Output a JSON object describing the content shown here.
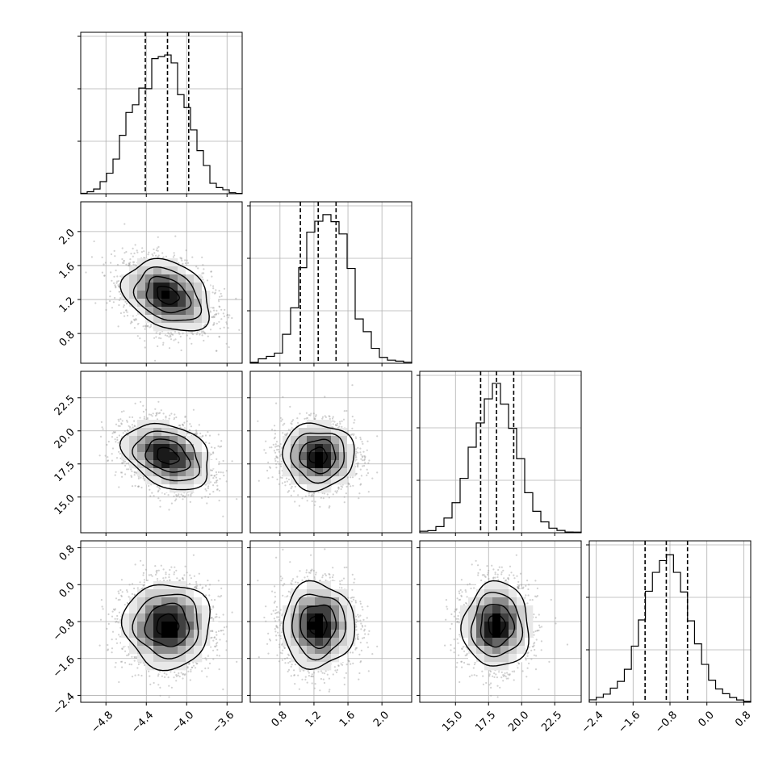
{
  "chart_data": {
    "type": "corner",
    "parameters": [
      {
        "range": [
          -5.05,
          -3.45
        ],
        "ticks": [
          -4.8,
          -4.4,
          -4.0,
          -3.6
        ],
        "tick_labels": [
          "−4.8",
          "−4.4",
          "−4.0",
          "−3.6"
        ],
        "quantiles": [
          -4.41,
          -4.19,
          -3.98
        ]
      },
      {
        "range": [
          0.45,
          2.35
        ],
        "ticks": [
          0.8,
          1.2,
          1.6,
          2.0
        ],
        "tick_labels": [
          "0.8",
          "1.2",
          "1.6",
          "2.0"
        ],
        "quantiles": [
          1.04,
          1.25,
          1.46
        ]
      },
      {
        "range": [
          12.3,
          24.5
        ],
        "ticks": [
          15.0,
          17.5,
          20.0,
          22.5
        ],
        "tick_labels": [
          "15.0",
          "17.5",
          "20.0",
          "22.5"
        ],
        "quantiles": [
          16.9,
          18.1,
          19.4
        ]
      },
      {
        "range": [
          -2.55,
          0.95
        ],
        "ticks": [
          -2.4,
          -1.6,
          -0.8,
          0.0,
          0.8
        ],
        "tick_labels": [
          "−2.4",
          "−1.6",
          "−0.8",
          "0.0",
          "0.8"
        ],
        "quantiles": [
          -1.34,
          -0.88,
          -0.42
        ]
      }
    ],
    "histograms": [
      [
        0.003,
        0.013,
        0.031,
        0.079,
        0.134,
        0.226,
        0.381,
        0.53,
        0.58,
        0.689,
        0.685,
        0.881,
        0.894,
        0.905,
        0.853,
        0.646,
        0.562,
        0.416,
        0.281,
        0.184,
        0.068,
        0.04,
        0.026,
        0.007,
        0.002
      ],
      [
        0.006,
        0.029,
        0.045,
        0.066,
        0.189,
        0.361,
        0.623,
        0.855,
        0.926,
        0.969,
        0.923,
        0.843,
        0.618,
        0.289,
        0.206,
        0.097,
        0.038,
        0.02,
        0.014,
        0.007
      ],
      [
        0.01,
        0.014,
        0.04,
        0.096,
        0.196,
        0.355,
        0.558,
        0.716,
        0.873,
        0.974,
        0.839,
        0.681,
        0.483,
        0.261,
        0.14,
        0.071,
        0.03,
        0.015,
        0.005,
        0.004
      ],
      [
        0.016,
        0.032,
        0.053,
        0.092,
        0.136,
        0.215,
        0.366,
        0.537,
        0.724,
        0.847,
        0.924,
        0.962,
        0.847,
        0.719,
        0.531,
        0.381,
        0.247,
        0.144,
        0.087,
        0.056,
        0.031,
        0.015,
        0.006
      ]
    ],
    "correlations": [
      [
        0,
        1,
        -0.3
      ],
      [
        0,
        2,
        -0.3
      ],
      [
        0,
        3,
        0.0
      ],
      [
        1,
        2,
        0.0
      ],
      [
        1,
        3,
        0.0
      ],
      [
        2,
        3,
        0.0
      ]
    ],
    "sigma_levels": [
      0.5,
      1.0,
      1.5,
      2.0
    ],
    "grid": true
  }
}
